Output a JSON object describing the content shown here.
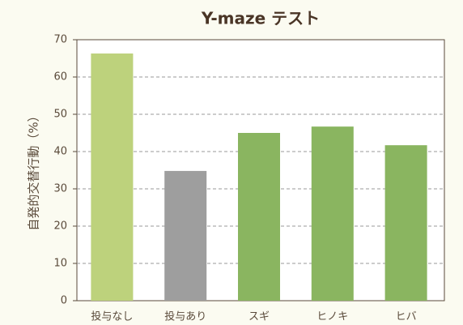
{
  "chart_data": {
    "type": "bar",
    "title": "Y-maze テスト",
    "y_label": "自発的交替行動（%）",
    "categories": [
      "投与なし",
      "投与あり",
      "スギ",
      "ヒノキ",
      "ヒバ"
    ],
    "values": [
      66.3,
      34.8,
      45,
      46.7,
      41.7
    ],
    "colors": [
      "#bdd27c",
      "#9e9e9e",
      "#8ab560",
      "#8ab560",
      "#8ab560"
    ],
    "ylim": [
      0,
      70
    ],
    "yticks": [
      0,
      10,
      20,
      30,
      40,
      50,
      60,
      70
    ],
    "grid": true
  }
}
